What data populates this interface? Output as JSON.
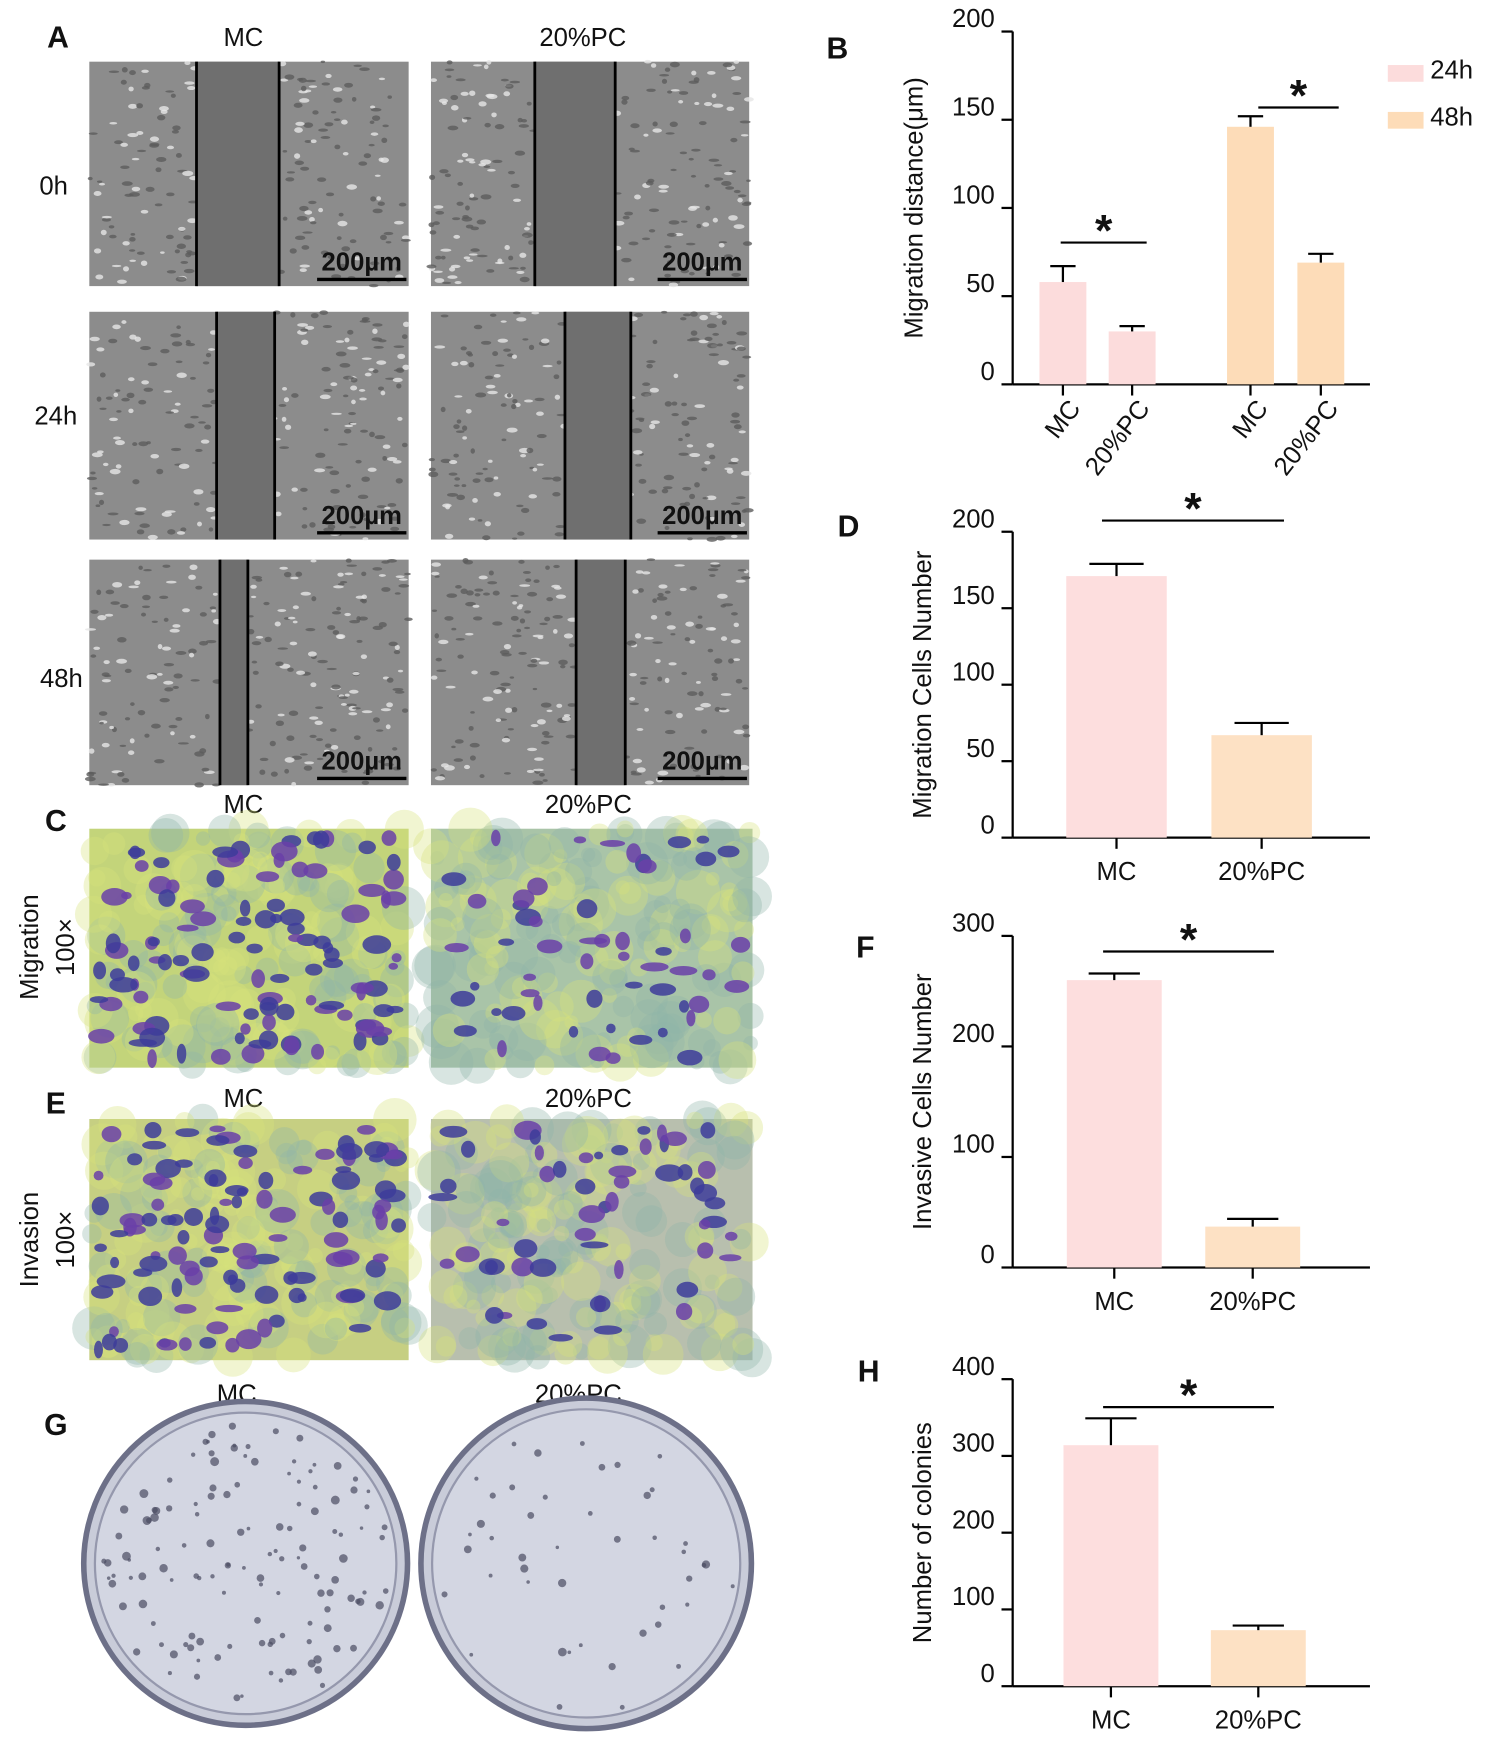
{
  "figure": {
    "panel_letters": [
      "A",
      "B",
      "C",
      "D",
      "E",
      "F",
      "G",
      "H"
    ],
    "wound_healing": {
      "columns": [
        "MC",
        "20%PC"
      ],
      "rows": [
        "0h",
        "24h",
        "48h"
      ],
      "scale_bars": [
        "200µm",
        "200µm",
        "200µm",
        "200µm",
        "200µm",
        "200µm"
      ]
    },
    "migration_images": {
      "columns": [
        "MC",
        "20%PC"
      ],
      "row_label": "Migration",
      "magnification": "100×"
    },
    "invasion_images": {
      "columns": [
        "MC",
        "20%PC"
      ],
      "row_label": "Invasion",
      "magnification": "100×"
    },
    "colony_images": {
      "columns": [
        "MC",
        "20%PC"
      ]
    }
  },
  "chart_data": [
    {
      "type": "bar",
      "y_label": "Migration distance(μm)",
      "categories": [
        "MC",
        "20%PC",
        "MC",
        "20%PC"
      ],
      "series": [
        {
          "name": "24h",
          "color": "#fcdcdc",
          "values": [
            58,
            30,
            null,
            null
          ],
          "errors": [
            9,
            3,
            null,
            null
          ]
        },
        {
          "name": "48h",
          "color": "#fddcb8",
          "values": [
            null,
            null,
            146,
            69
          ],
          "errors": [
            null,
            null,
            6,
            5
          ]
        }
      ],
      "ylim": [
        0,
        200
      ],
      "yticks": [
        0,
        50,
        100,
        150,
        200
      ],
      "legend": "top-right",
      "annotations": [
        "*",
        "*"
      ]
    },
    {
      "type": "bar",
      "y_label": "Migration Cells Number",
      "categories": [
        "MC",
        "20%PC"
      ],
      "values": [
        171,
        67
      ],
      "errors": [
        8,
        8
      ],
      "colors": [
        "#fddede",
        "#fde1c4"
      ],
      "ylim": [
        0,
        200
      ],
      "yticks": [
        0,
        50,
        100,
        150,
        200
      ],
      "annotations": [
        "*"
      ]
    },
    {
      "type": "bar",
      "y_label": "Invasive Cells Number",
      "categories": [
        "MC",
        "20%PC"
      ],
      "values": [
        260,
        37
      ],
      "errors": [
        6,
        7
      ],
      "colors": [
        "#fddede",
        "#fde1c4"
      ],
      "ylim": [
        0,
        300
      ],
      "yticks": [
        0,
        100,
        200,
        300
      ],
      "annotations": [
        "*"
      ]
    },
    {
      "type": "bar",
      "y_label": "Number of colonies",
      "categories": [
        "MC",
        "20%PC"
      ],
      "values": [
        314,
        73
      ],
      "errors": [
        35,
        6
      ],
      "colors": [
        "#fddede",
        "#fde1c4"
      ],
      "ylim": [
        0,
        400
      ],
      "yticks": [
        0,
        100,
        200,
        300,
        400
      ],
      "annotations": [
        "*"
      ]
    }
  ]
}
